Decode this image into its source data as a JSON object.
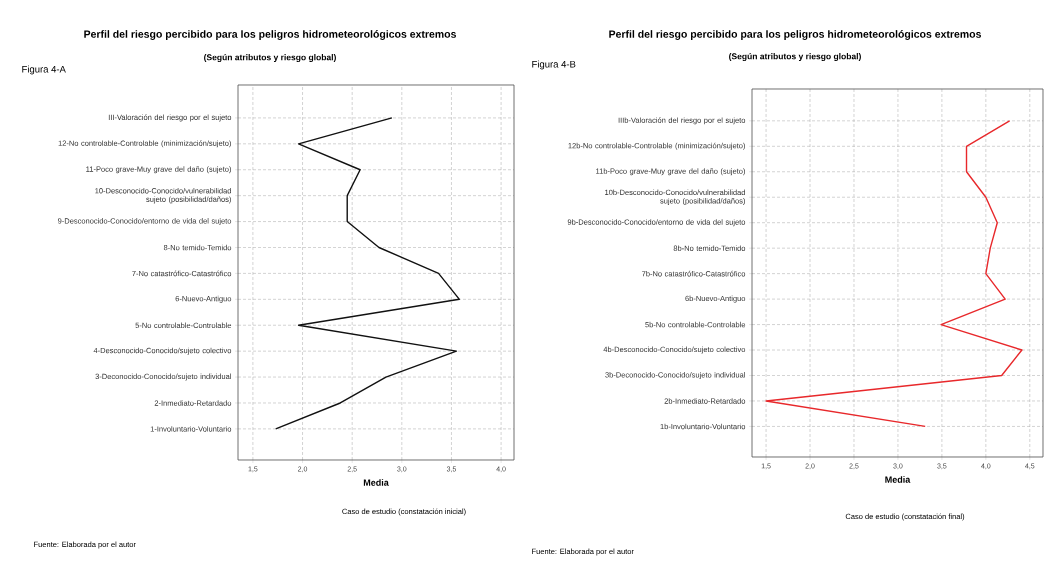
{
  "chart_data": [
    {
      "type": "line",
      "title": "Perfil del riesgo percibido para los peligros hidrometeorológicos extremos",
      "subtitle": "(Según atributos y riesgo global)",
      "xlabel": "Media",
      "annotations": [
        "Figura 4-A",
        "Caso de estudio (constatación inicial)",
        "Fuente: Elaborada por el autor"
      ],
      "orientation": "horizontal",
      "categories": [
        "III-Valoración del riesgo por el sujeto",
        "12-No controlable-Controlable (minimización/sujeto)",
        "11-Poco grave-Muy grave del daño (sujeto)",
        "10-Desconocido-Conocido/vulnerabilidad sujeto (posibilidad/daños)",
        "9-Desconocido-Conocido/entorno de vida del sujeto",
        "8-No temido-Temido",
        "7-No catastrófico-Catastrófico",
        "6-Nuevo-Antiguo",
        "5-No controlable-Controlable",
        "4-Desconocido-Conocido/sujeto colectivo",
        "3-Deconocido-Conocido/sujeto individual",
        "2-Inmediato-Retardado",
        "1-Involuntario-Voluntario"
      ],
      "values": [
        2.9,
        1.96,
        2.58,
        2.45,
        2.45,
        2.77,
        3.37,
        3.58,
        1.96,
        3.55,
        2.84,
        2.38,
        1.73
      ],
      "color": "#111111",
      "xlim": [
        1.35,
        4.13
      ],
      "xticks": [
        {
          "value": 1.5,
          "label": "1,5"
        },
        {
          "value": 2.0,
          "label": "2,0"
        },
        {
          "value": 2.5,
          "label": "2,5"
        },
        {
          "value": 3.0,
          "label": "3,0"
        },
        {
          "value": 3.5,
          "label": "3,5"
        },
        {
          "value": 4.0,
          "label": "4,0"
        }
      ],
      "grid": true
    },
    {
      "type": "line",
      "title": "Perfil del riesgo percibido para los peligros hidrometeorológicos extremos",
      "subtitle": "(Según atributos y riesgo global)",
      "xlabel": "Media",
      "annotations": [
        "Figura 4-B",
        "Caso de estudio (constatación final)",
        "Fuente: Elaborada por el autor"
      ],
      "orientation": "horizontal",
      "categories": [
        "IIIb-Valoración del riesgo por el sujeto",
        "12b-No controlable-Controlable (minimización/sujeto)",
        "11b-Poco grave-Muy grave del daño (sujeto)",
        "10b-Desconocido-Conocido/vulnerabilidad sujeto (posibilidad/daños)",
        "9b-Desconocido-Conocido/entorno de vida del sujeto",
        "8b-No temido-Temido",
        "7b-No catastrófico-Catastrófico",
        "6b-Nuevo-Antiguo",
        "5b-No controlable-Controlable",
        "4b-Desconocido-Conocido/sujeto colectivo",
        "3b-Deconocido-Conocido/sujeto individual",
        "2b-Inmediato-Retardado",
        "1b-Involuntario-Voluntario"
      ],
      "values": [
        4.27,
        3.78,
        3.78,
        4.0,
        4.13,
        4.05,
        4.0,
        4.22,
        3.49,
        4.41,
        4.18,
        1.5,
        3.31
      ],
      "color": "#e8282b",
      "xlim": [
        1.34,
        4.65
      ],
      "xticks": [
        {
          "value": 1.5,
          "label": "1,5"
        },
        {
          "value": 2.0,
          "label": "2,0"
        },
        {
          "value": 2.5,
          "label": "2,5"
        },
        {
          "value": 3.0,
          "label": "3,0"
        },
        {
          "value": 3.5,
          "label": "3,5"
        },
        {
          "value": 4.0,
          "label": "4,0"
        },
        {
          "value": 4.5,
          "label": "4,5"
        }
      ],
      "grid": true
    }
  ]
}
